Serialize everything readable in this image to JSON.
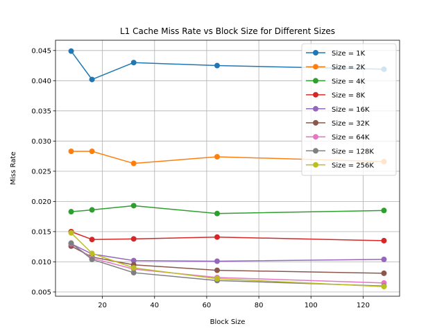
{
  "chart_data": {
    "type": "line",
    "title": "L1 Cache Miss Rate vs Block Size for Different Sizes",
    "xlabel": "Block Size",
    "ylabel": "Miss Rate",
    "xlim": [
      2,
      134
    ],
    "ylim": [
      0.0043,
      0.0467
    ],
    "xticks": [
      20,
      40,
      60,
      80,
      100,
      120
    ],
    "yticks": [
      0.005,
      0.01,
      0.015,
      0.02,
      0.025,
      0.03,
      0.035,
      0.04,
      0.045
    ],
    "ytick_labels": [
      "0.005",
      "0.010",
      "0.015",
      "0.020",
      "0.025",
      "0.030",
      "0.035",
      "0.040",
      "0.045"
    ],
    "grid": true,
    "legend_position": "top-right",
    "x": [
      8,
      16,
      32,
      64,
      128
    ],
    "series": [
      {
        "name": "Size = 1K",
        "color": "#1f77b4",
        "values": [
          0.0449,
          0.0402,
          0.043,
          0.0425,
          0.0419
        ]
      },
      {
        "name": "Size = 2K",
        "color": "#ff7f0e",
        "values": [
          0.0283,
          0.0283,
          0.0263,
          0.0274,
          0.0266
        ]
      },
      {
        "name": "Size = 4K",
        "color": "#2ca02c",
        "values": [
          0.0183,
          0.0186,
          0.0193,
          0.018,
          0.0185
        ]
      },
      {
        "name": "Size = 8K",
        "color": "#d62728",
        "values": [
          0.015,
          0.0137,
          0.0138,
          0.0141,
          0.0135
        ]
      },
      {
        "name": "Size = 16K",
        "color": "#9467bd",
        "values": [
          0.013,
          0.0113,
          0.0102,
          0.0101,
          0.0104
        ]
      },
      {
        "name": "Size = 32K",
        "color": "#8c564b",
        "values": [
          0.0126,
          0.0108,
          0.0095,
          0.0086,
          0.0081
        ]
      },
      {
        "name": "Size = 64K",
        "color": "#e377c2",
        "values": [
          0.013,
          0.0106,
          0.0088,
          0.0074,
          0.0065
        ]
      },
      {
        "name": "Size = 128K",
        "color": "#7f7f7f",
        "values": [
          0.0131,
          0.0104,
          0.0082,
          0.0069,
          0.006
        ]
      },
      {
        "name": "Size = 256K",
        "color": "#bcbd22",
        "values": [
          0.0148,
          0.0114,
          0.009,
          0.0072,
          0.0059
        ]
      }
    ]
  }
}
